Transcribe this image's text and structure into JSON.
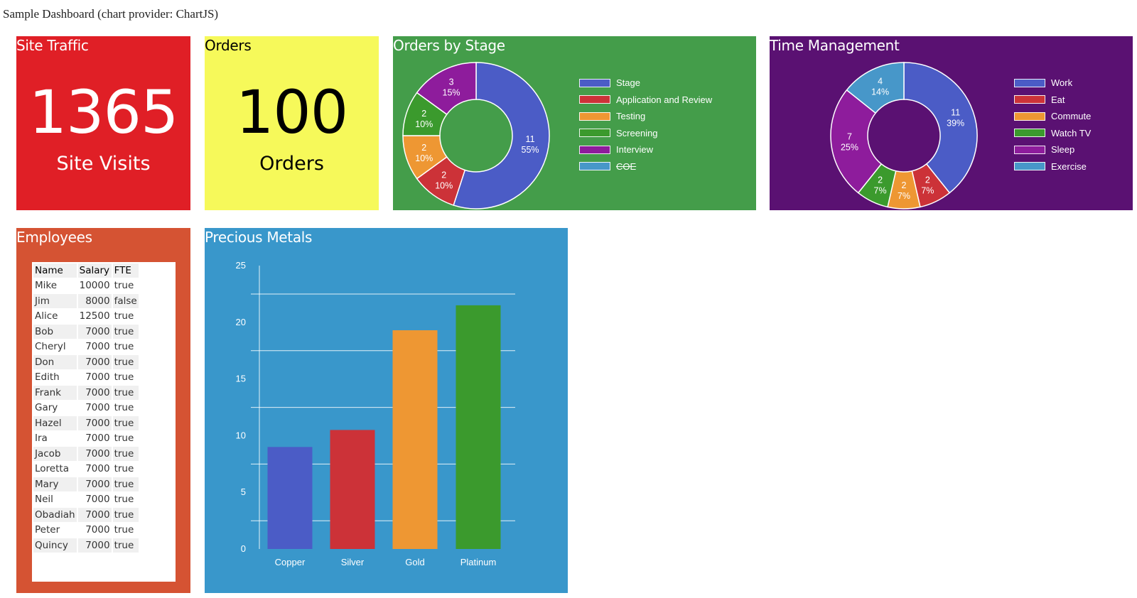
{
  "page_title": "Sample Dashboard (chart provider: ChartJS)",
  "site_traffic": {
    "title": "Site Traffic",
    "value": "1365",
    "label": "Site Visits",
    "bg": "#e01f26"
  },
  "orders": {
    "title": "Orders",
    "value": "100",
    "label": "Orders",
    "bg": "#f6f95a"
  },
  "orders_by_stage": {
    "title": "Orders by Stage",
    "bg": "#449d4a",
    "legend": [
      {
        "label": "Stage",
        "color": "#4b5cc6",
        "hidden": false
      },
      {
        "label": "Application and Review",
        "color": "#cc3238",
        "hidden": false
      },
      {
        "label": "Testing",
        "color": "#ee9733",
        "hidden": false
      },
      {
        "label": "Screening",
        "color": "#3b9a2d",
        "hidden": false
      },
      {
        "label": "Interview",
        "color": "#8e1c9c",
        "hidden": false
      },
      {
        "label": "COE",
        "color": "#4797c9",
        "hidden": true
      }
    ],
    "slices": [
      {
        "value": 11,
        "pct": "55%",
        "color": "#4b5cc6"
      },
      {
        "value": 2,
        "pct": "10%",
        "color": "#cc3238"
      },
      {
        "value": 2,
        "pct": "10%",
        "color": "#ee9733"
      },
      {
        "value": 2,
        "pct": "10%",
        "color": "#3b9a2d"
      },
      {
        "value": 3,
        "pct": "15%",
        "color": "#8e1c9c"
      }
    ]
  },
  "time_management": {
    "title": "Time Management",
    "bg": "#5a1172",
    "legend": [
      {
        "label": "Work",
        "color": "#4b5cc6",
        "hidden": false
      },
      {
        "label": "Eat",
        "color": "#cc3238",
        "hidden": false
      },
      {
        "label": "Commute",
        "color": "#ee9733",
        "hidden": false
      },
      {
        "label": "Watch TV",
        "color": "#3b9a2d",
        "hidden": false
      },
      {
        "label": "Sleep",
        "color": "#8e1c9c",
        "hidden": false
      },
      {
        "label": "Exercise",
        "color": "#4797c9",
        "hidden": false
      }
    ],
    "slices": [
      {
        "value": 11,
        "pct": "39%",
        "color": "#4b5cc6"
      },
      {
        "value": 2,
        "pct": "7%",
        "color": "#cc3238"
      },
      {
        "value": 2,
        "pct": "7%",
        "color": "#ee9733"
      },
      {
        "value": 2,
        "pct": "7%",
        "color": "#3b9a2d"
      },
      {
        "value": 7,
        "pct": "25%",
        "color": "#8e1c9c"
      },
      {
        "value": 4,
        "pct": "14%",
        "color": "#4797c9"
      }
    ]
  },
  "employees": {
    "title": "Employees",
    "bg": "#d55333",
    "columns": [
      "Name",
      "Salary",
      "FTE"
    ],
    "rows": [
      [
        "Mike",
        "10000",
        "true"
      ],
      [
        "Jim",
        "8000",
        "false"
      ],
      [
        "Alice",
        "12500",
        "true"
      ],
      [
        "Bob",
        "7000",
        "true"
      ],
      [
        "Cheryl",
        "7000",
        "true"
      ],
      [
        "Don",
        "7000",
        "true"
      ],
      [
        "Edith",
        "7000",
        "true"
      ],
      [
        "Frank",
        "7000",
        "true"
      ],
      [
        "Gary",
        "7000",
        "true"
      ],
      [
        "Hazel",
        "7000",
        "true"
      ],
      [
        "Ira",
        "7000",
        "true"
      ],
      [
        "Jacob",
        "7000",
        "true"
      ],
      [
        "Loretta",
        "7000",
        "true"
      ],
      [
        "Mary",
        "7000",
        "true"
      ],
      [
        "Neil",
        "7000",
        "true"
      ],
      [
        "Obadiah",
        "7000",
        "true"
      ],
      [
        "Peter",
        "7000",
        "true"
      ],
      [
        "Quincy",
        "7000",
        "true"
      ]
    ]
  },
  "precious_metals": {
    "title": "Precious Metals",
    "bg": "#3997cb"
  },
  "chart_data": [
    {
      "type": "pie",
      "title": "Orders by Stage",
      "categories": [
        "Stage",
        "Application and Review",
        "Testing",
        "Screening",
        "Interview",
        "COE"
      ],
      "values": [
        11,
        2,
        2,
        2,
        3,
        0
      ],
      "legend": "right"
    },
    {
      "type": "pie",
      "title": "Time Management",
      "categories": [
        "Work",
        "Eat",
        "Commute",
        "Watch TV",
        "Sleep",
        "Exercise"
      ],
      "values": [
        11,
        2,
        2,
        2,
        7,
        4
      ],
      "legend": "right"
    },
    {
      "type": "bar",
      "title": "Precious Metals",
      "categories": [
        "Copper",
        "Silver",
        "Gold",
        "Platinum"
      ],
      "values": [
        9,
        10.5,
        19.3,
        21.5
      ],
      "colors": [
        "#4b5cc6",
        "#cc3238",
        "#ee9733",
        "#3b9a2d"
      ],
      "yticks": [
        "0",
        "5",
        "10",
        "15",
        "20",
        "25"
      ],
      "ylim": [
        0,
        25
      ],
      "xlabel": "",
      "ylabel": "",
      "grid": true
    }
  ]
}
